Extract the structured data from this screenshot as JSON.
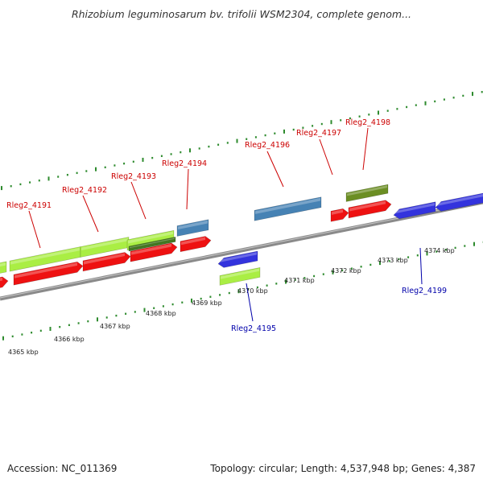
{
  "title": "Rhizobium leguminosarum bv. trifolii WSM2304, complete genom...",
  "footer": {
    "accession": "Accession: NC_011369",
    "topology": "Topology: circular; Length: 4,537,948 bp; Genes: 4,387"
  },
  "colors": {
    "backbone": "#8a8a8a",
    "ticks": "#2e8b2e",
    "forward_label": "#cc0000",
    "reverse_label": "#0000aa",
    "cds": "#ee1111",
    "rna_blue": "#3333dd",
    "green_light": "#aaee44",
    "green_dark": "#447722",
    "steel_blue": "#4682b4",
    "olive": "#6b8e23"
  },
  "scale": {
    "unit": "kbp",
    "tick_labels": [
      "4365 kbp",
      "4366 kbp",
      "4367 kbp",
      "4368 kbp",
      "4369 kbp",
      "4370 kbp",
      "4371 kbp",
      "4372 kbp",
      "4373 kbp",
      "4374 kbp"
    ]
  },
  "gene_labels": {
    "forward": [
      "Rleg2_4191",
      "Rleg2_4192",
      "Rleg2_4193",
      "Rleg2_4194",
      "Rleg2_4196",
      "Rleg2_4197",
      "Rleg2_4198"
    ],
    "reverse": [
      "Rleg2_4195",
      "Rleg2_4199"
    ]
  }
}
